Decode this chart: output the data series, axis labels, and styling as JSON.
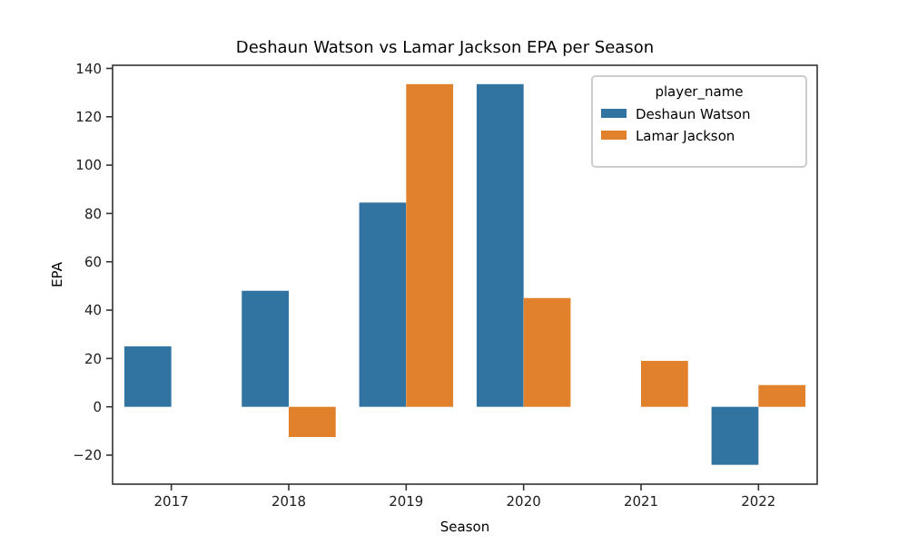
{
  "chart_data": {
    "type": "bar",
    "title": "Deshaun Watson vs Lamar Jackson EPA per Season",
    "xlabel": "Season",
    "ylabel": "EPA",
    "legend_title": "player_name",
    "legend": "top right",
    "categories": [
      "2017",
      "2018",
      "2019",
      "2020",
      "2021",
      "2022"
    ],
    "series": [
      {
        "name": "Deshaun Watson",
        "color": "#3274a1",
        "values": [
          25,
          48,
          84.5,
          133.5,
          null,
          -24
        ]
      },
      {
        "name": "Lamar Jackson",
        "color": "#e1812c",
        "values": [
          null,
          -12.5,
          133.5,
          45,
          19,
          9
        ]
      }
    ],
    "ylim": [
      -32,
      141.3
    ],
    "yticks": [
      {
        "value": -20,
        "label": "−20"
      },
      0,
      20,
      40,
      60,
      80,
      100,
      120,
      140
    ]
  }
}
